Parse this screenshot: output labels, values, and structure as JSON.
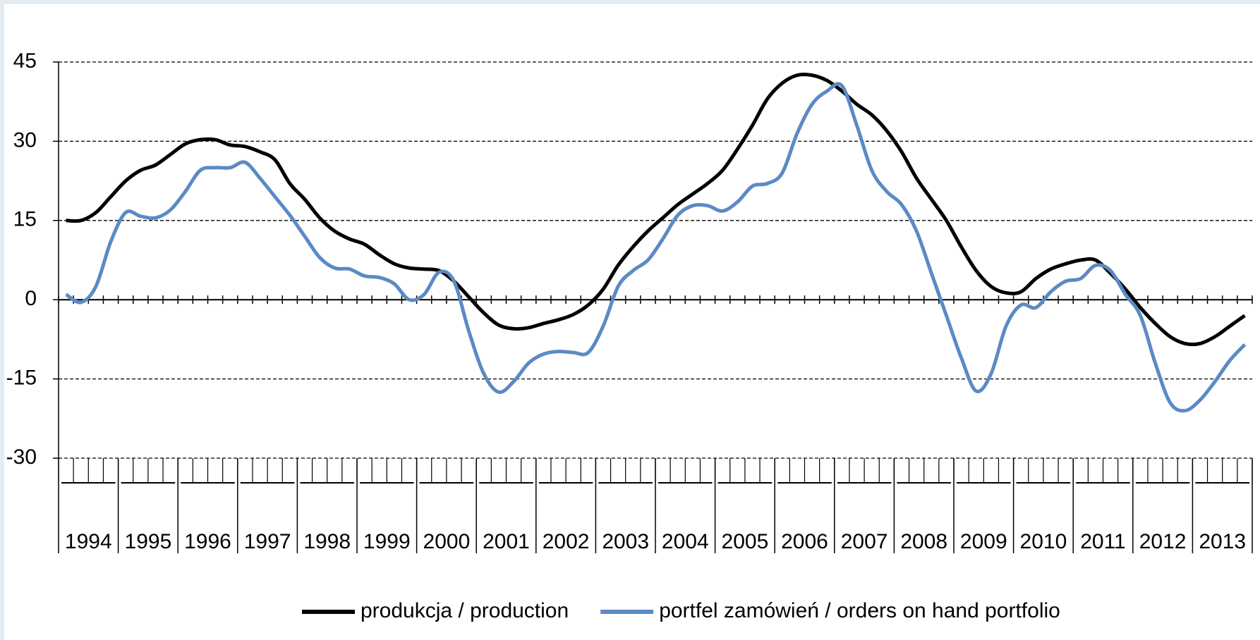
{
  "chart_data": {
    "type": "line",
    "groups": [
      "1994",
      "1995",
      "1996",
      "1997",
      "1998",
      "1999",
      "2000",
      "2001",
      "2002",
      "2003",
      "2004",
      "2005",
      "2006",
      "2007",
      "2008",
      "2009",
      "2010",
      "2011",
      "2012",
      "2013"
    ],
    "categories": [
      null,
      null,
      null,
      null,
      null,
      null,
      null,
      null,
      null,
      null,
      null,
      null,
      null,
      null,
      null,
      null,
      null,
      null,
      null,
      null,
      null,
      null,
      null,
      null,
      null,
      null,
      null,
      null,
      null,
      null,
      null,
      null,
      null,
      null,
      null,
      null,
      null,
      null,
      null,
      null,
      null,
      null,
      null,
      null,
      null,
      null,
      null,
      null,
      null,
      null,
      null,
      null,
      null,
      null,
      null,
      null,
      null,
      null,
      null,
      null,
      null,
      null,
      null,
      null,
      null,
      null,
      null,
      null,
      null,
      null,
      null,
      null,
      null,
      null,
      null,
      null,
      null,
      null,
      null,
      null
    ],
    "series": [
      {
        "name": "produkcja / production",
        "color": "#000000",
        "values": [
          15,
          15,
          16.5,
          19.5,
          22.5,
          24.5,
          25.5,
          27.5,
          29.5,
          30.3,
          30.3,
          29.3,
          29,
          28,
          26.5,
          22,
          19,
          15.5,
          13,
          11.5,
          10.5,
          8.5,
          6.8,
          6,
          5.8,
          5.5,
          3.5,
          0.5,
          -2.5,
          -4.8,
          -5.5,
          -5.3,
          -4.5,
          -3.8,
          -2.8,
          -1,
          2,
          6.5,
          10,
          13,
          15.5,
          18,
          20,
          22,
          24.5,
          28.5,
          33,
          38,
          41,
          42.5,
          42.5,
          41.5,
          39.5,
          37,
          35,
          32,
          28,
          23,
          19,
          15,
          10,
          5.5,
          2.5,
          1.3,
          1.5,
          4,
          5.8,
          6.8,
          7.5,
          7.5,
          5,
          2,
          -1.5,
          -4.5,
          -7,
          -8.3,
          -8.3,
          -7,
          -5,
          -3
        ]
      },
      {
        "name": "portfel zamówień / orders on hand portfolio",
        "color": "#5b8ac4",
        "values": [
          1,
          -0.5,
          2.5,
          11,
          16.5,
          15.8,
          15.5,
          17,
          20.5,
          24.5,
          25,
          25,
          26,
          23,
          19.5,
          16,
          12,
          8,
          6,
          5.8,
          4.5,
          4.2,
          3,
          0,
          1,
          5.2,
          3.5,
          -6,
          -14,
          -17.5,
          -15.5,
          -12,
          -10.3,
          -9.8,
          -10,
          -10,
          -5,
          2.5,
          5.5,
          7.5,
          11.5,
          16,
          17.8,
          17.8,
          16.8,
          18.5,
          21.5,
          22,
          24,
          31.5,
          37,
          39.5,
          40.5,
          33,
          24.5,
          20.5,
          18,
          13,
          5,
          -3,
          -11,
          -17.3,
          -14,
          -5,
          -1,
          -1.5,
          1.5,
          3.5,
          4,
          6.5,
          5.5,
          1,
          -3,
          -12,
          -19.5,
          -21,
          -19,
          -15.5,
          -11.5,
          -8.5
        ]
      }
    ],
    "ylim": [
      -30,
      45
    ],
    "yticks": [
      45,
      30,
      15,
      0,
      -15,
      -30
    ],
    "grid": true,
    "legend": "bottom"
  }
}
